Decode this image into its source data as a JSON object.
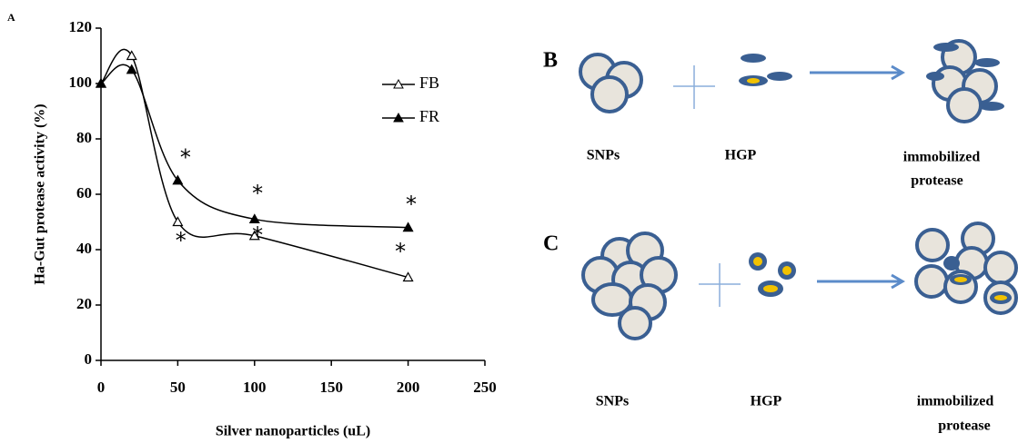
{
  "chart_data": {
    "type": "line",
    "panel_label": "A",
    "xlabel": "Silver nanoparticles (uL)",
    "ylabel": "Ha-Gut protease activity (%)",
    "x": [
      0,
      20,
      50,
      100,
      200
    ],
    "series": [
      {
        "name": "FB",
        "color": "#000000",
        "marker": "open-triangle",
        "values": [
          100,
          110,
          50,
          45,
          30
        ]
      },
      {
        "name": "FR",
        "color": "#000000",
        "marker": "filled-triangle",
        "values": [
          100,
          105,
          65,
          51,
          48
        ]
      }
    ],
    "annotations": [
      {
        "text": "*",
        "x": 55,
        "y": 73
      },
      {
        "text": "*",
        "x": 52,
        "y": 43
      },
      {
        "text": "*",
        "x": 102,
        "y": 60
      },
      {
        "text": "*",
        "x": 102,
        "y": 45
      },
      {
        "text": "*",
        "x": 202,
        "y": 56
      },
      {
        "text": "*",
        "x": 195,
        "y": 39
      }
    ],
    "xlim": [
      0,
      250
    ],
    "xticks": [
      0,
      50,
      100,
      150,
      200,
      250
    ],
    "ylim": [
      0,
      120
    ],
    "yticks": [
      0,
      20,
      40,
      60,
      80,
      100,
      120
    ],
    "legend": "upper right"
  },
  "panel_b": {
    "label": "B",
    "left": "SNPs",
    "middle": "HGP",
    "right": [
      "immobilized",
      "protease"
    ]
  },
  "panel_c": {
    "label": "C",
    "left": "SNPs",
    "middle": "HGP",
    "right": [
      "immobilized",
      "protease"
    ]
  }
}
